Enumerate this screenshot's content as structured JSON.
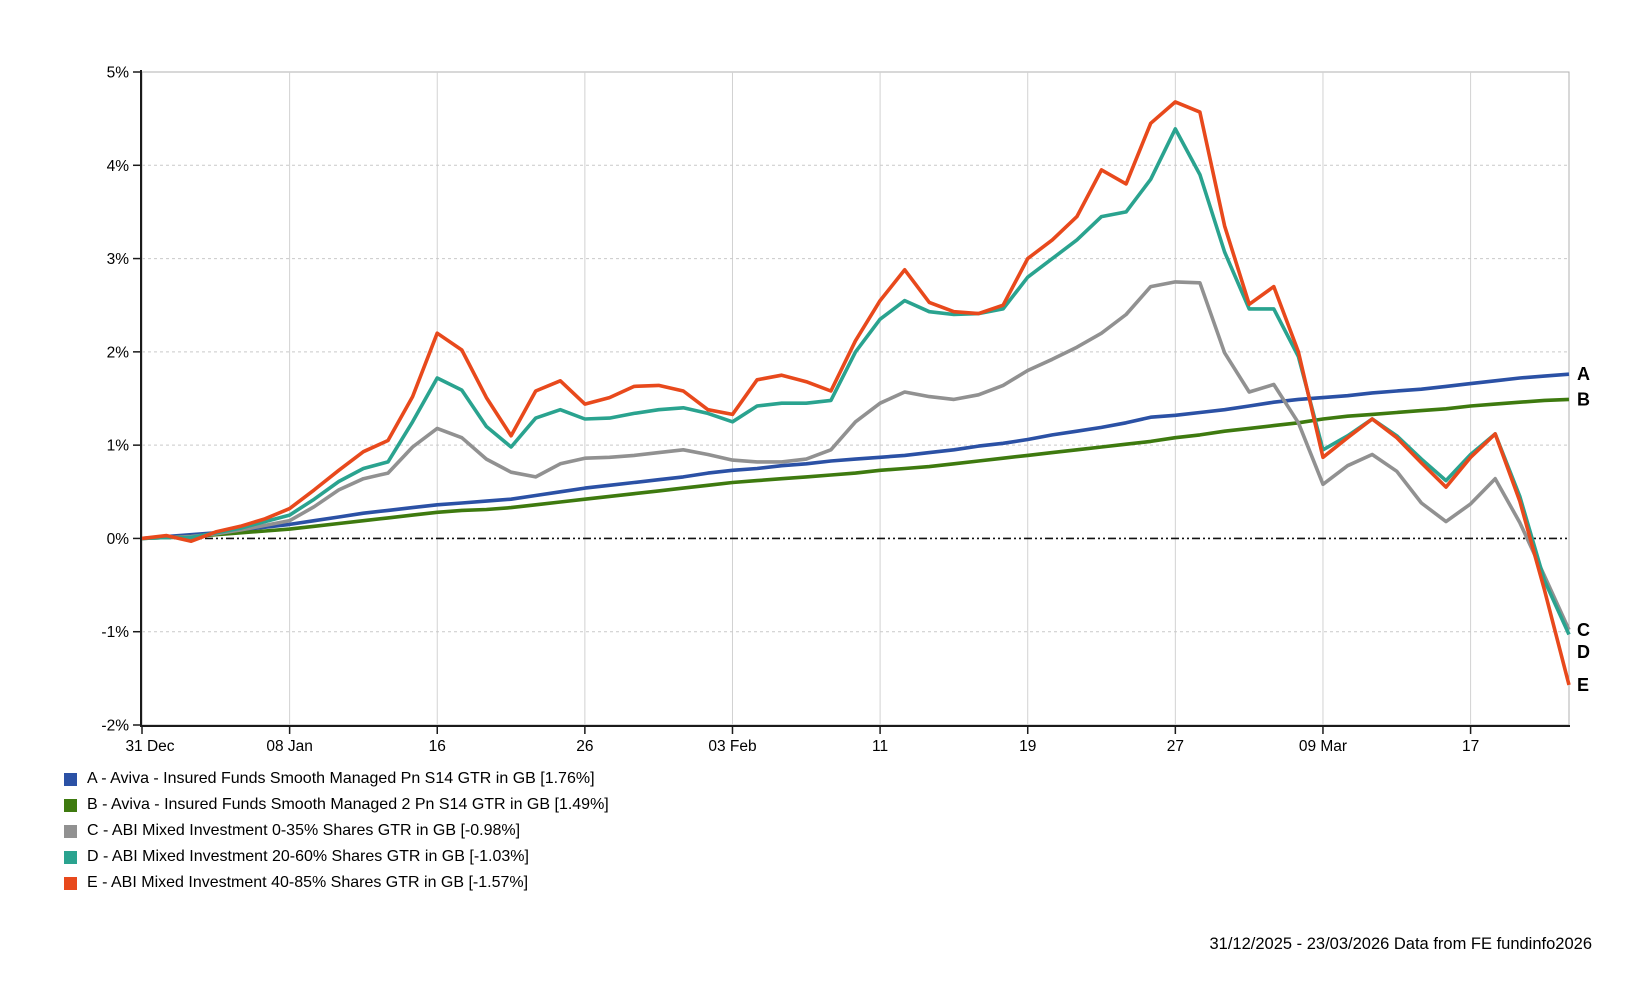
{
  "chart_data": {
    "type": "line",
    "title": "",
    "footer": "31/12/2025 - 23/03/2026 Data from FE fundinfo2026",
    "x_axis": {
      "n_points": 59,
      "tick_indices": [
        0,
        6,
        12,
        18,
        24,
        30,
        36,
        42,
        48,
        54
      ],
      "tick_labels": [
        "31 Dec",
        "08 Jan",
        "16",
        "26",
        "03 Feb",
        "11",
        "19",
        "27",
        "09 Mar",
        "17"
      ],
      "range_label": "31/12/2025 - 23/03/2026"
    },
    "y_axis": {
      "unit": "%",
      "ylim": [
        -2,
        5
      ],
      "tick_values": [
        5,
        4,
        3,
        2,
        1,
        0,
        -1,
        -2
      ],
      "tick_labels": [
        "5%",
        "4%",
        "3%",
        "2%",
        "1%",
        "0%",
        "-1%",
        "-2%"
      ]
    },
    "grid": {
      "vertical": "solid",
      "horizontal": "dashed",
      "zero_line": "dash-dot",
      "legend_position": "bottom-left"
    },
    "series": [
      {
        "id": "A",
        "legend": "A - Aviva - Insured Funds Smooth Managed Pn S14 GTR in GB [1.76%]",
        "color": "#2b51a5",
        "end_value": 1.76,
        "values": [
          0.0,
          0.02,
          0.04,
          0.06,
          0.09,
          0.12,
          0.15,
          0.19,
          0.23,
          0.27,
          0.3,
          0.33,
          0.36,
          0.38,
          0.4,
          0.42,
          0.46,
          0.5,
          0.54,
          0.57,
          0.6,
          0.63,
          0.66,
          0.7,
          0.73,
          0.75,
          0.78,
          0.8,
          0.83,
          0.85,
          0.87,
          0.89,
          0.92,
          0.95,
          0.99,
          1.02,
          1.06,
          1.11,
          1.15,
          1.19,
          1.24,
          1.3,
          1.32,
          1.35,
          1.38,
          1.42,
          1.46,
          1.49,
          1.51,
          1.53,
          1.56,
          1.58,
          1.6,
          1.63,
          1.66,
          1.69,
          1.72,
          1.74,
          1.76
        ]
      },
      {
        "id": "B",
        "legend": "B - Aviva - Insured Funds Smooth Managed 2 Pn S14 GTR in GB [1.49%]",
        "color": "#3e7a0f",
        "end_value": 1.49,
        "values": [
          0.0,
          0.01,
          0.02,
          0.04,
          0.06,
          0.08,
          0.1,
          0.13,
          0.16,
          0.19,
          0.22,
          0.25,
          0.28,
          0.3,
          0.31,
          0.33,
          0.36,
          0.39,
          0.42,
          0.45,
          0.48,
          0.51,
          0.54,
          0.57,
          0.6,
          0.62,
          0.64,
          0.66,
          0.68,
          0.7,
          0.73,
          0.75,
          0.77,
          0.8,
          0.83,
          0.86,
          0.89,
          0.92,
          0.95,
          0.98,
          1.01,
          1.04,
          1.08,
          1.11,
          1.15,
          1.18,
          1.21,
          1.24,
          1.28,
          1.31,
          1.33,
          1.35,
          1.37,
          1.39,
          1.42,
          1.44,
          1.46,
          1.48,
          1.49
        ]
      },
      {
        "id": "C",
        "legend": "C - ABI Mixed Investment 0-35% Shares GTR in GB [-0.98%]",
        "color": "#919191",
        "end_value": -0.98,
        "values": [
          0.0,
          0.01,
          0.02,
          0.05,
          0.09,
          0.14,
          0.19,
          0.34,
          0.52,
          0.64,
          0.7,
          0.98,
          1.18,
          1.08,
          0.85,
          0.71,
          0.66,
          0.8,
          0.86,
          0.87,
          0.89,
          0.92,
          0.95,
          0.9,
          0.84,
          0.82,
          0.82,
          0.85,
          0.95,
          1.25,
          1.45,
          1.57,
          1.52,
          1.49,
          1.54,
          1.64,
          1.8,
          1.92,
          2.05,
          2.2,
          2.4,
          2.7,
          2.75,
          2.74,
          1.99,
          1.57,
          1.65,
          1.24,
          0.58,
          0.78,
          0.9,
          0.72,
          0.38,
          0.18,
          0.37,
          0.64,
          0.17,
          -0.4,
          -0.98
        ]
      },
      {
        "id": "D",
        "legend": "D - ABI Mixed Investment 20-60% Shares GTR in GB [-1.03%]",
        "color": "#2aa38f",
        "end_value": -1.03,
        "values": [
          0.0,
          0.01,
          0.01,
          0.06,
          0.11,
          0.18,
          0.25,
          0.42,
          0.61,
          0.75,
          0.82,
          1.25,
          1.72,
          1.59,
          1.2,
          0.98,
          1.29,
          1.38,
          1.28,
          1.29,
          1.34,
          1.38,
          1.4,
          1.34,
          1.25,
          1.42,
          1.45,
          1.45,
          1.48,
          2.0,
          2.35,
          2.55,
          2.43,
          2.4,
          2.41,
          2.46,
          2.8,
          3.0,
          3.2,
          3.45,
          3.5,
          3.85,
          4.39,
          3.9,
          3.07,
          2.46,
          2.46,
          1.95,
          0.95,
          1.1,
          1.28,
          1.1,
          0.85,
          0.62,
          0.9,
          1.12,
          0.45,
          -0.45,
          -1.03
        ]
      },
      {
        "id": "E",
        "legend": "E - ABI Mixed Investment 40-85% Shares GTR in GB [-1.57%]",
        "color": "#e8491c",
        "end_value": -1.57,
        "values": [
          0.0,
          0.03,
          -0.03,
          0.07,
          0.13,
          0.21,
          0.32,
          0.52,
          0.73,
          0.93,
          1.05,
          1.52,
          2.2,
          2.02,
          1.51,
          1.1,
          1.58,
          1.69,
          1.44,
          1.51,
          1.63,
          1.64,
          1.58,
          1.38,
          1.33,
          1.7,
          1.75,
          1.68,
          1.58,
          2.12,
          2.55,
          2.88,
          2.53,
          2.43,
          2.41,
          2.5,
          3.0,
          3.2,
          3.45,
          3.95,
          3.8,
          4.45,
          4.68,
          4.57,
          3.35,
          2.51,
          2.7,
          2.0,
          0.87,
          1.08,
          1.28,
          1.08,
          0.81,
          0.55,
          0.87,
          1.12,
          0.4,
          -0.55,
          -1.57
        ]
      }
    ],
    "colors": {
      "plot_border": "#b0b0b0",
      "axis": "#1a1a1a",
      "grid_vertical": "#d2d2d2",
      "grid_horizontal": "#c9c9c9",
      "zero_line": "#111111",
      "text": "#000000",
      "background": "#ffffff"
    }
  }
}
